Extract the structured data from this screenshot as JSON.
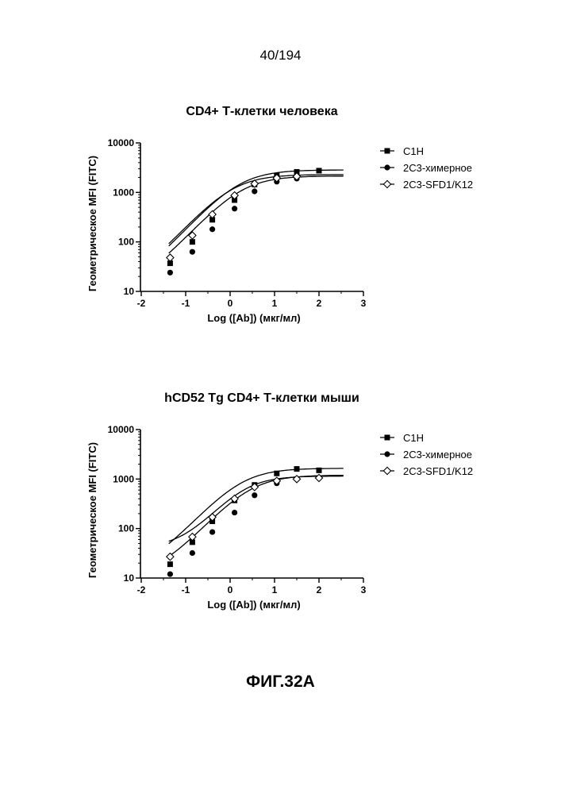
{
  "page": {
    "number": "40/194",
    "figure_caption": "ФИГ.32А"
  },
  "chart_data": [
    {
      "type": "scatter",
      "title": "CD4+ Т-клетки человека",
      "xlabel": "Log ([Ab]) (мкг/мл)",
      "ylabel": "Геометрическое MFI (FITC)",
      "xlim": [
        -2,
        3
      ],
      "ylim": [
        10,
        10000
      ],
      "yscale": "log",
      "xticks": [
        "-2",
        "-1",
        "0",
        "1",
        "2",
        "3"
      ],
      "yticks": [
        "10",
        "100",
        "1000",
        "10000"
      ],
      "legend_position": "top-right",
      "series": [
        {
          "name": "C1H",
          "marker": "square",
          "x": [
            -1.35,
            -0.85,
            -0.4,
            0.1,
            0.55,
            1.05,
            1.5,
            2.0
          ],
          "y": [
            37,
            100,
            280,
            700,
            1450,
            2200,
            2600,
            2750
          ],
          "fit": {
            "bottom": 10,
            "top": 2850,
            "logec50": 0.2,
            "hill": 1.0
          }
        },
        {
          "name": "2С3-химерное",
          "marker": "circle",
          "x": [
            -1.35,
            -0.85,
            -0.4,
            0.1,
            0.55,
            1.05,
            1.5
          ],
          "y": [
            24,
            63,
            180,
            470,
            1050,
            1650,
            1900
          ],
          "fit": {
            "bottom": 10,
            "top": 2150,
            "logec50": 0.25,
            "hill": 1.0
          }
        },
        {
          "name": "2С3-SFD1/K12",
          "marker": "diamond",
          "x": [
            -1.35,
            -0.85,
            -0.4,
            0.1,
            0.55,
            1.05,
            1.5
          ],
          "y": [
            48,
            135,
            360,
            870,
            1500,
            1950,
            2100
          ],
          "fit": {
            "bottom": 10,
            "top": 2300,
            "logec50": 0.05,
            "hill": 1.0
          }
        }
      ]
    },
    {
      "type": "scatter",
      "title": "hCD52 Tg CD4+ Т-клетки мыши",
      "xlabel": "Log ([Ab]) (мкг/мл)",
      "ylabel": "Геометрическое MFI (FITC)",
      "xlim": [
        -2,
        3
      ],
      "ylim": [
        10,
        10000
      ],
      "yscale": "log",
      "xticks": [
        "-2",
        "-1",
        "0",
        "1",
        "2",
        "3"
      ],
      "yticks": [
        "10",
        "100",
        "1000",
        "10000"
      ],
      "legend_position": "top-right",
      "series": [
        {
          "name": "C1H",
          "marker": "square",
          "x": [
            -1.35,
            -0.85,
            -0.4,
            0.1,
            0.55,
            1.05,
            1.5,
            2.0
          ],
          "y": [
            19,
            53,
            140,
            370,
            760,
            1300,
            1600,
            1500
          ],
          "fit": {
            "bottom": 12,
            "top": 1650,
            "logec50": 0.25,
            "hill": 1.0
          }
        },
        {
          "name": "2С3-химерное",
          "marker": "circle",
          "x": [
            -1.35,
            -0.85,
            -0.4,
            0.1,
            0.55,
            1.05,
            1.5
          ],
          "y": [
            12,
            32,
            85,
            210,
            470,
            820,
            1000
          ],
          "fit": {
            "bottom": 10,
            "top": 1200,
            "logec50": 0.45,
            "hill": 1.0
          }
        },
        {
          "name": "2С3-SFD1/K12",
          "marker": "diamond",
          "x": [
            -1.35,
            -0.85,
            -0.4,
            0.1,
            0.55,
            1.05,
            1.5,
            2.0
          ],
          "y": [
            27,
            68,
            170,
            400,
            690,
            920,
            1000,
            1050
          ],
          "fit": {
            "bottom": 40,
            "top": 1150,
            "logec50": 0.3,
            "hill": 1.1
          }
        }
      ]
    }
  ]
}
